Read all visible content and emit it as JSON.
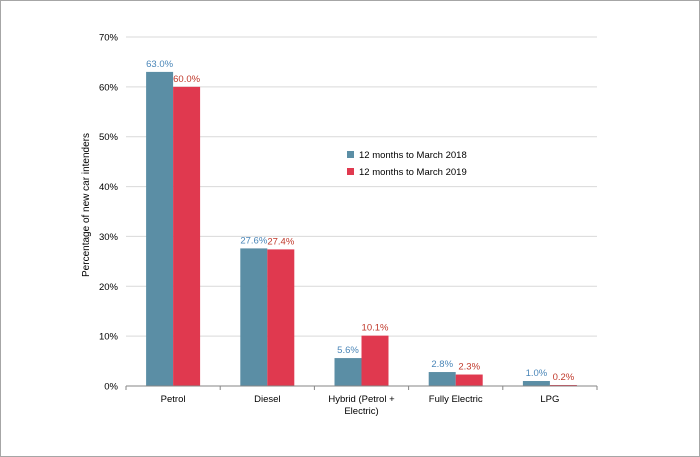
{
  "chart_data": {
    "type": "bar",
    "title": "",
    "xlabel": "",
    "ylabel": "Percentage of new car intenders",
    "ylim": [
      0,
      70
    ],
    "yticks": [
      "0%",
      "10%",
      "20%",
      "30%",
      "40%",
      "50%",
      "60%",
      "70%"
    ],
    "categories": [
      [
        "Petrol"
      ],
      [
        "Diesel"
      ],
      [
        "Hybrid (Petrol +",
        "Electric)"
      ],
      [
        "Fully Electric"
      ],
      [
        "LPG"
      ]
    ],
    "series": [
      {
        "name": "12 months to March 2018",
        "color": "#5b8ea5",
        "values": [
          63.0,
          27.6,
          5.6,
          2.8,
          1.0
        ],
        "labels": [
          "63.0%",
          "27.6%",
          "5.6%",
          "2.8%",
          "1.0%"
        ]
      },
      {
        "name": "12 months to March 2019",
        "color": "#e0394f",
        "values": [
          60.0,
          27.4,
          10.1,
          2.3,
          0.2
        ],
        "labels": [
          "60.0%",
          "27.4%",
          "10.1%",
          "2.3%",
          "0.2%"
        ]
      }
    ],
    "grid": true,
    "legend_position": "center-right"
  },
  "colors": {
    "label_2018": "#4a86b8",
    "label_2019": "#c0392b",
    "grid": "#d9d9d9",
    "axis": "#868686"
  }
}
